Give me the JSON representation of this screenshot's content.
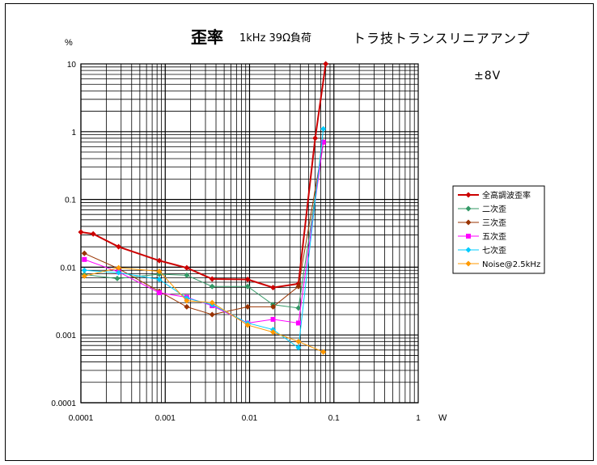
{
  "chart_data": {
    "type": "line",
    "title": "歪率",
    "subtitle": "1kHz 39Ω負荷",
    "description": "トラ技トランスリニアアンプ",
    "annotation": "±8V",
    "ylabel": "%",
    "xlabel": "W",
    "x_scale": "log",
    "y_scale": "log",
    "xlim": [
      0.0001,
      1
    ],
    "ylim": [
      0.0001,
      10
    ],
    "x_ticks": [
      "0.0001",
      "0.001",
      "0.01",
      "0.1",
      "1"
    ],
    "y_ticks": [
      "10",
      "1",
      "0.1",
      "0.01",
      "0.001",
      "0.0001"
    ],
    "grid": true,
    "legend_position": "right",
    "series": [
      {
        "name": "全高調波歪率",
        "color": "#cc0000",
        "marker": "diamond",
        "x": [
          0.0001,
          0.00014,
          0.00028,
          0.00085,
          0.0018,
          0.0036,
          0.0095,
          0.019,
          0.038,
          0.06,
          0.08
        ],
        "y": [
          0.033,
          0.031,
          0.02,
          0.0125,
          0.0098,
          0.0067,
          0.0066,
          0.005,
          0.0057,
          0.8,
          10
        ]
      },
      {
        "name": "二次歪",
        "color": "#339966",
        "marker": "diamond",
        "x": [
          0.00011,
          0.00027,
          0.00085,
          0.0018,
          0.0036,
          0.0095,
          0.019,
          0.038,
          0.075
        ],
        "y": [
          0.0078,
          0.0068,
          0.0079,
          0.0076,
          0.0052,
          0.0052,
          0.0028,
          0.0025,
          0.7
        ]
      },
      {
        "name": "三次歪",
        "color": "#993300",
        "marker": "diamond",
        "x": [
          0.00011,
          0.00028,
          0.00085,
          0.0018,
          0.0036,
          0.0095,
          0.019,
          0.038,
          0.075
        ],
        "y": [
          0.016,
          0.0095,
          0.0044,
          0.0026,
          0.002,
          0.0026,
          0.0026,
          0.0052,
          0.7
        ]
      },
      {
        "name": "五次歪",
        "color": "#ff00ff",
        "marker": "square",
        "x": [
          0.00011,
          0.00028,
          0.00085,
          0.0018,
          0.0036,
          0.0095,
          0.019,
          0.038,
          0.075
        ],
        "y": [
          0.013,
          0.0085,
          0.0042,
          0.0036,
          0.0027,
          0.0015,
          0.0017,
          0.0015,
          0.7
        ]
      },
      {
        "name": "七次歪",
        "color": "#00ccff",
        "marker": "diamond",
        "x": [
          0.00011,
          0.00028,
          0.00085,
          0.0018,
          0.0036,
          0.0095,
          0.019,
          0.038,
          0.075
        ],
        "y": [
          0.009,
          0.0083,
          0.0066,
          0.0035,
          0.0028,
          0.0015,
          0.0012,
          0.00065,
          1.1
        ]
      },
      {
        "name": "Noise@2.5kHz",
        "color": "#ff9900",
        "marker": "diamond",
        "x": [
          0.00011,
          0.00028,
          0.00085,
          0.0018,
          0.0036,
          0.0095,
          0.019,
          0.038,
          0.075
        ],
        "y": [
          0.0074,
          0.0098,
          0.0087,
          0.0032,
          0.003,
          0.0014,
          0.0011,
          0.0008,
          0.00056
        ]
      }
    ]
  }
}
